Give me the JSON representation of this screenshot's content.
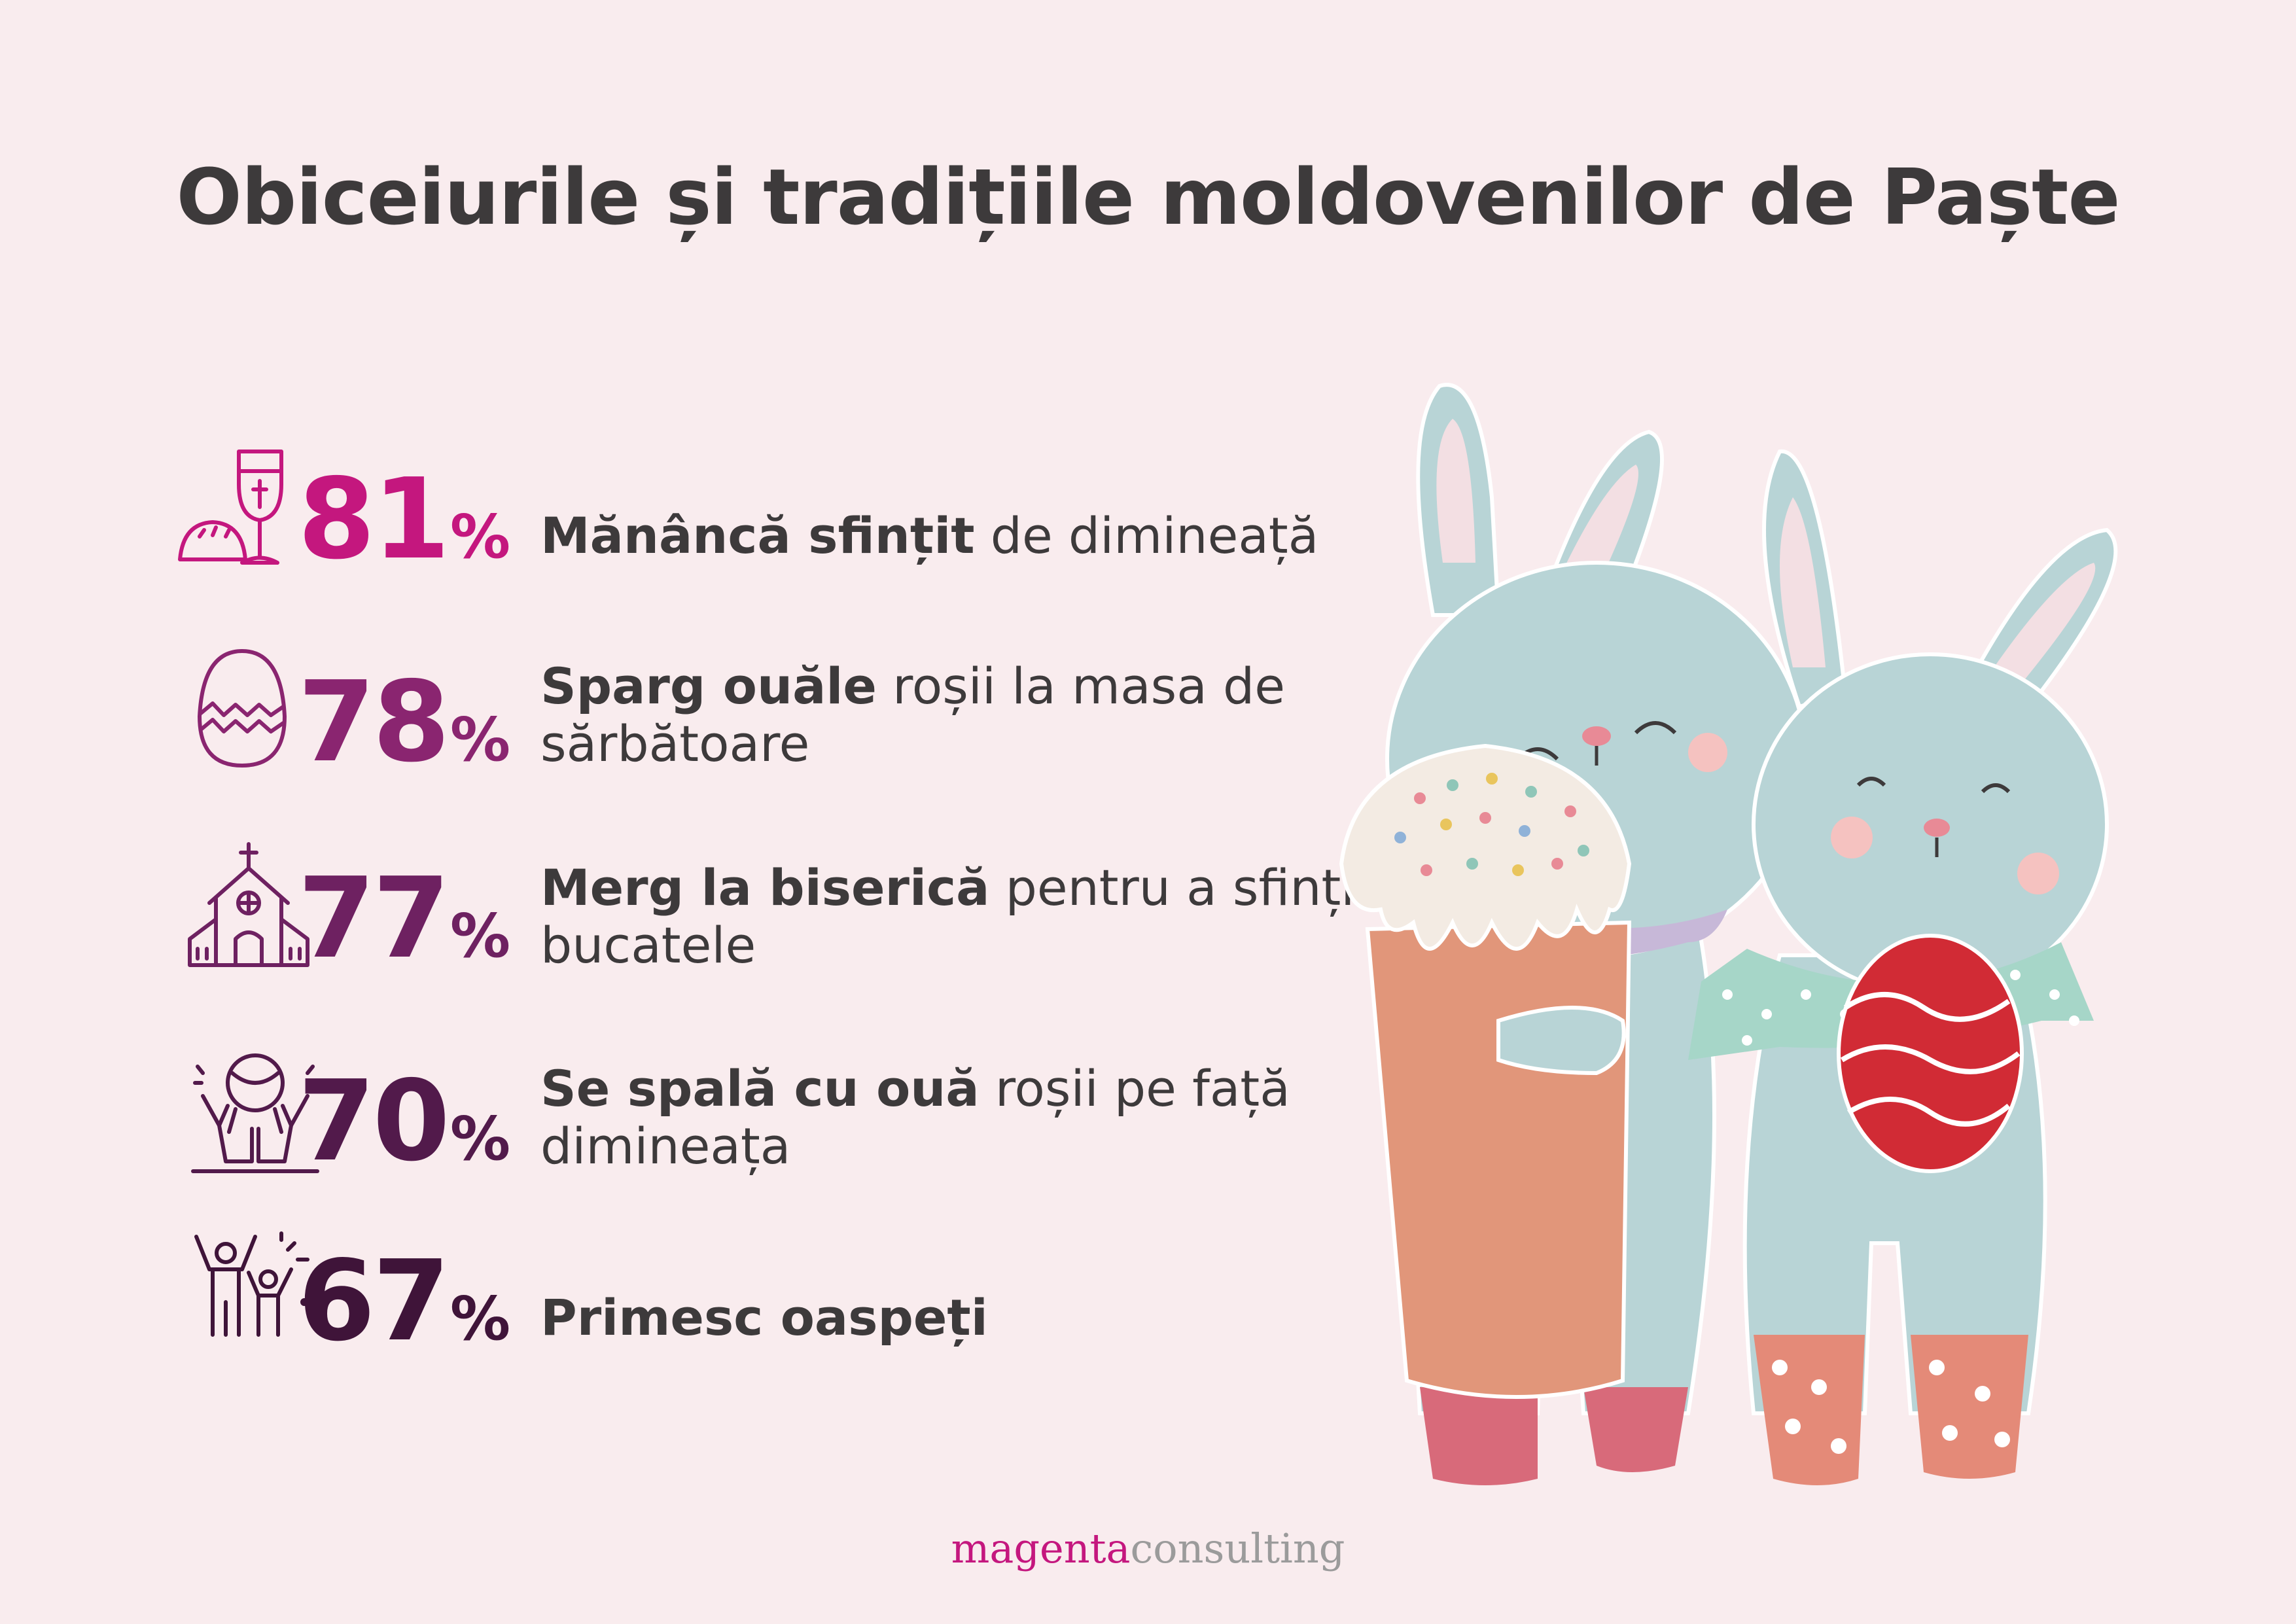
{
  "title": "Obiceiurile și tradițiile moldovenilor de Paște",
  "items": [
    {
      "percent": "81",
      "percent_value": 81,
      "bold": "Mănâncă sfințit",
      "rest": " de dimineață",
      "color": "#c4177e",
      "icon": "chalice-bread-icon"
    },
    {
      "percent": "78",
      "percent_value": 78,
      "bold": "Sparg ouăle",
      "rest": " roșii la masa de sărbătoare",
      "color": "#8a2570",
      "icon": "cracked-egg-icon"
    },
    {
      "percent": "77",
      "percent_value": 77,
      "bold": "Merg la biserică",
      "rest": " pentru a sfinți bucatele",
      "color": "#6e2161",
      "icon": "church-icon"
    },
    {
      "percent": "70",
      "percent_value": 70,
      "bold": "Se spală cu ouă",
      "rest": " roșii pe față dimineața",
      "color": "#521a4b",
      "icon": "washing-hands-icon"
    },
    {
      "percent": "67",
      "percent_value": 67,
      "bold": "Primesc oaspeți",
      "rest": "",
      "color": "#3f1439",
      "icon": "guests-icon"
    }
  ],
  "percent_sign": "%",
  "logo": {
    "part1": "magenta",
    "part2": "consulting"
  },
  "illustration": "easter-bunnies-illustration",
  "colors": {
    "background": "#f9ecee",
    "text": "#3d3a3b",
    "bunny": "#b8d4d6",
    "accent": "#c4177e"
  }
}
